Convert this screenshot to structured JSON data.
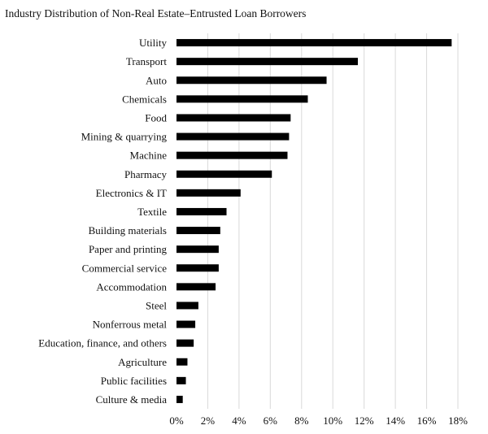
{
  "chart_data": {
    "type": "bar",
    "orientation": "horizontal",
    "title": "Industry Distribution of Non-Real Estate–Entrusted Loan Borrowers",
    "categories": [
      "Utility",
      "Transport",
      "Auto",
      "Chemicals",
      "Food",
      "Mining & quarrying",
      "Machine",
      "Pharmacy",
      "Electronics & IT",
      "Textile",
      "Building materials",
      "Paper and printing",
      "Commercial service",
      "Accommodation",
      "Steel",
      "Nonferrous metal",
      "Education, finance, and others",
      "Agriculture",
      "Public facilities",
      "Culture & media"
    ],
    "values": [
      17.6,
      11.6,
      9.6,
      8.4,
      7.3,
      7.2,
      7.1,
      6.1,
      4.1,
      3.2,
      2.8,
      2.7,
      2.7,
      2.5,
      1.4,
      1.2,
      1.1,
      0.7,
      0.6,
      0.4
    ],
    "xlim": [
      0,
      18
    ],
    "x_ticks": [
      0,
      2,
      4,
      6,
      8,
      10,
      12,
      14,
      16,
      18
    ],
    "x_tick_labels": [
      "0%",
      "2%",
      "4%",
      "6%",
      "8%",
      "10%",
      "12%",
      "14%",
      "16%",
      "18%"
    ],
    "grid": true,
    "bar_color": "#000000",
    "grid_color": "#d9d9d9"
  }
}
